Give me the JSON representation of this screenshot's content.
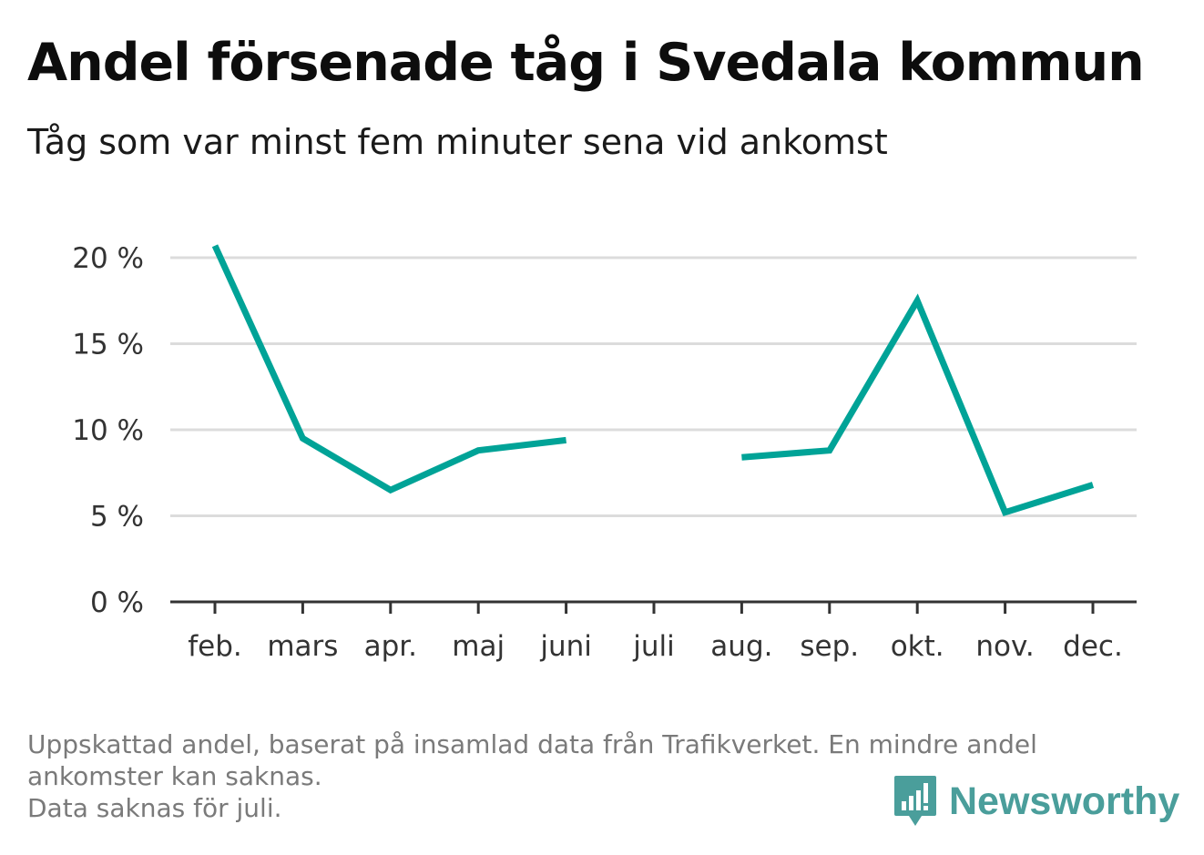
{
  "header": {
    "title": "Andel försenade tåg i Svedala kommun",
    "subtitle": "Tåg som var minst fem minuter sena vid ankomst"
  },
  "chart_data": {
    "type": "line",
    "categories": [
      "feb.",
      "mars",
      "apr.",
      "maj",
      "juni",
      "juli",
      "aug.",
      "sep.",
      "okt.",
      "nov.",
      "dec."
    ],
    "series": [
      {
        "values": [
          20.7,
          9.5,
          6.5,
          8.8,
          9.4,
          null,
          8.4,
          8.8,
          17.5,
          5.2,
          6.8
        ]
      }
    ],
    "y_ticks": [
      "0 %",
      "5 %",
      "10 %",
      "15 %",
      "20 %"
    ],
    "y_tick_values": [
      0,
      5,
      10,
      15,
      20
    ],
    "ylim": [
      0,
      20
    ],
    "grid": true,
    "line_color": "#00a397"
  },
  "footnote": {
    "line1": "Uppskattad andel, baserat på insamlad data från Trafikverket. En mindre andel",
    "line2": "ankomster kan saknas.",
    "line3": "Data saknas för juli."
  },
  "brand": {
    "name": "Newsworthy",
    "icon": "bar-chart-speech-bubble-icon",
    "color": "#4a9e9b"
  }
}
